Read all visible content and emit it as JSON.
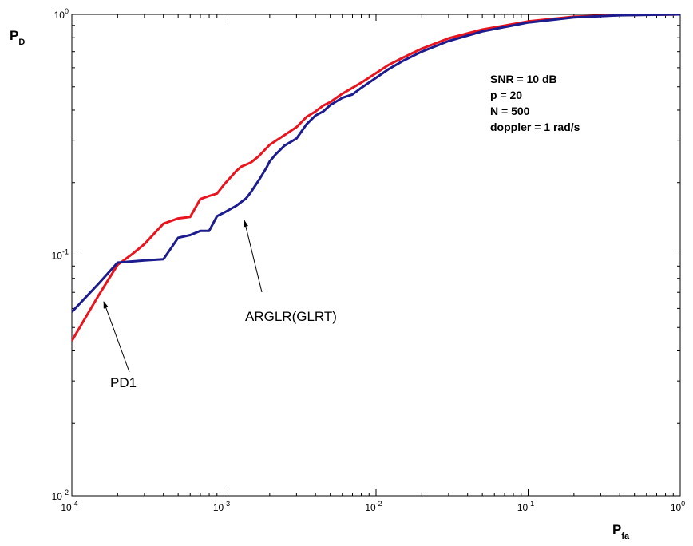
{
  "chart_data": {
    "type": "line",
    "xscale": "log",
    "yscale": "log",
    "xlim": [
      0.0001,
      1
    ],
    "ylim": [
      0.01,
      1
    ],
    "xlabel": {
      "main": "P",
      "sub": "fa"
    },
    "ylabel": {
      "main": "P",
      "sub": "D"
    },
    "xticks": [
      {
        "value": 0.0001,
        "base": "10",
        "exp": "-4"
      },
      {
        "value": 0.001,
        "base": "10",
        "exp": "-3"
      },
      {
        "value": 0.01,
        "base": "10",
        "exp": "-2"
      },
      {
        "value": 0.1,
        "base": "10",
        "exp": "-1"
      },
      {
        "value": 1,
        "base": "10",
        "exp": "0"
      }
    ],
    "yticks": [
      {
        "value": 0.01,
        "base": "10",
        "exp": "-2"
      },
      {
        "value": 0.1,
        "base": "10",
        "exp": "-1"
      },
      {
        "value": 1,
        "base": "10",
        "exp": "0"
      }
    ],
    "grid": false,
    "series": [
      {
        "name": "PD1",
        "color": "#e8141e",
        "points": [
          [
            0.0001,
            0.044
          ],
          [
            0.00015,
            0.068
          ],
          [
            0.0002,
            0.091
          ],
          [
            0.00025,
            0.101
          ],
          [
            0.0003,
            0.111
          ],
          [
            0.0004,
            0.135
          ],
          [
            0.0005,
            0.142
          ],
          [
            0.0006,
            0.144
          ],
          [
            0.0007,
            0.171
          ],
          [
            0.0008,
            0.176
          ],
          [
            0.0009,
            0.18
          ],
          [
            0.001,
            0.196
          ],
          [
            0.0012,
            0.223
          ],
          [
            0.0013,
            0.233
          ],
          [
            0.0015,
            0.242
          ],
          [
            0.0017,
            0.258
          ],
          [
            0.002,
            0.287
          ],
          [
            0.0025,
            0.315
          ],
          [
            0.003,
            0.34
          ],
          [
            0.0035,
            0.375
          ],
          [
            0.004,
            0.395
          ],
          [
            0.0045,
            0.418
          ],
          [
            0.005,
            0.432
          ],
          [
            0.006,
            0.468
          ],
          [
            0.007,
            0.495
          ],
          [
            0.008,
            0.52
          ],
          [
            0.01,
            0.57
          ],
          [
            0.012,
            0.615
          ],
          [
            0.015,
            0.66
          ],
          [
            0.02,
            0.72
          ],
          [
            0.03,
            0.795
          ],
          [
            0.05,
            0.865
          ],
          [
            0.1,
            0.935
          ],
          [
            0.2,
            0.978
          ],
          [
            0.4,
            0.993
          ],
          [
            1,
            1.0
          ]
        ]
      },
      {
        "name": "ARGLR(GLRT)",
        "color": "#1c1c8e",
        "points": [
          [
            0.0001,
            0.058
          ],
          [
            0.00015,
            0.076
          ],
          [
            0.0002,
            0.093
          ],
          [
            0.0003,
            0.095
          ],
          [
            0.0004,
            0.096
          ],
          [
            0.0005,
            0.118
          ],
          [
            0.0006,
            0.121
          ],
          [
            0.0007,
            0.126
          ],
          [
            0.0008,
            0.126
          ],
          [
            0.0009,
            0.145
          ],
          [
            0.001,
            0.15
          ],
          [
            0.0012,
            0.16
          ],
          [
            0.0014,
            0.172
          ],
          [
            0.0015,
            0.182
          ],
          [
            0.0017,
            0.205
          ],
          [
            0.0019,
            0.23
          ],
          [
            0.002,
            0.245
          ],
          [
            0.0022,
            0.263
          ],
          [
            0.0025,
            0.285
          ],
          [
            0.003,
            0.305
          ],
          [
            0.0035,
            0.35
          ],
          [
            0.004,
            0.38
          ],
          [
            0.0045,
            0.395
          ],
          [
            0.005,
            0.42
          ],
          [
            0.006,
            0.45
          ],
          [
            0.007,
            0.465
          ],
          [
            0.008,
            0.495
          ],
          [
            0.01,
            0.545
          ],
          [
            0.012,
            0.59
          ],
          [
            0.015,
            0.64
          ],
          [
            0.02,
            0.7
          ],
          [
            0.03,
            0.775
          ],
          [
            0.05,
            0.85
          ],
          [
            0.1,
            0.925
          ],
          [
            0.2,
            0.972
          ],
          [
            0.4,
            0.992
          ],
          [
            1,
            1.0
          ]
        ]
      }
    ],
    "annotations": [
      {
        "text": "PD1",
        "points_to": [
          0.00016,
          0.068
        ]
      },
      {
        "text": "ARGLR(GLRT)",
        "points_to": [
          0.0015,
          0.16
        ]
      }
    ],
    "info_lines": [
      "SNR = 10 dB",
      "p = 20",
      "N = 500",
      "doppler = 1 rad/s"
    ]
  }
}
